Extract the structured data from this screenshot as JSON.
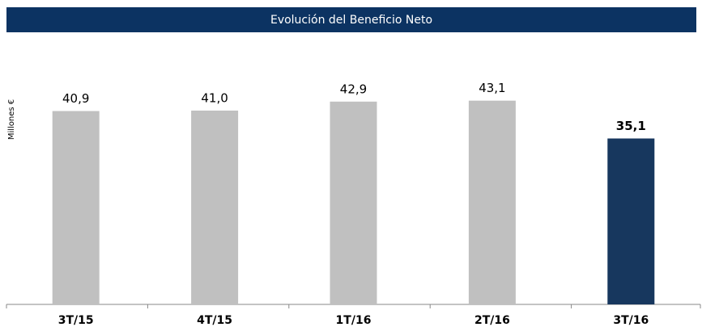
{
  "chart_data": {
    "type": "bar",
    "title": "Evolución del Beneficio Neto",
    "ylabel": "Millones €",
    "categories": [
      "3T/15",
      "4T/15",
      "1T/16",
      "2T/16",
      "3T/16"
    ],
    "values": [
      40.9,
      41.0,
      42.9,
      43.1,
      35.1
    ],
    "value_labels": [
      "40,9",
      "41,0",
      "42,9",
      "43,1",
      "35,1"
    ],
    "colors": [
      "#c0c0c0",
      "#c0c0c0",
      "#c0c0c0",
      "#c0c0c0",
      "#17375e"
    ],
    "highlight_index": 4,
    "ylim": [
      0,
      55
    ]
  }
}
